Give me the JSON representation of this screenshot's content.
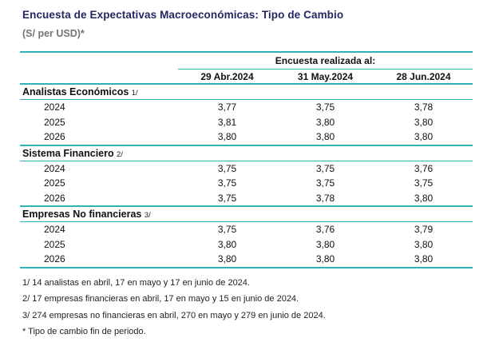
{
  "page": {
    "title": "Encuesta de Expectativas Macroeconómicas: Tipo de Cambio",
    "subtitle": "(S/ per USD)*"
  },
  "colors": {
    "accent_teal": "#2DB4BA",
    "title_navy": "#232862",
    "subtitle_gray": "#717579"
  },
  "chart_data": {
    "type": "table",
    "title": "Encuesta de Expectativas Macroeconómicas: Tipo de Cambio",
    "subtitle": "(S/ per USD)*",
    "columns": [
      "29 Abr.2024",
      "31 May.2024",
      "28 Jun.2024"
    ],
    "sections": [
      {
        "name": "Analistas Económicos 1/",
        "rows": [
          {
            "year": "2024",
            "values": [
              3.77,
              3.75,
              3.78
            ]
          },
          {
            "year": "2025",
            "values": [
              3.81,
              3.8,
              3.8
            ]
          },
          {
            "year": "2026",
            "values": [
              3.8,
              3.8,
              3.8
            ]
          }
        ]
      },
      {
        "name": "Sistema Financiero 2/",
        "rows": [
          {
            "year": "2024",
            "values": [
              3.75,
              3.75,
              3.76
            ]
          },
          {
            "year": "2025",
            "values": [
              3.75,
              3.75,
              3.75
            ]
          },
          {
            "year": "2026",
            "values": [
              3.75,
              3.78,
              3.8
            ]
          }
        ]
      },
      {
        "name": "Empresas No financieras 3/",
        "rows": [
          {
            "year": "2024",
            "values": [
              3.75,
              3.76,
              3.79
            ]
          },
          {
            "year": "2025",
            "values": [
              3.8,
              3.8,
              3.8
            ]
          },
          {
            "year": "2026",
            "values": [
              3.8,
              3.8,
              3.8
            ]
          }
        ]
      }
    ]
  },
  "table": {
    "header_group": "Encuesta realizada al:",
    "columns": [
      "29 Abr.2024",
      "31 May.2024",
      "28 Jun.2024"
    ],
    "sections": [
      {
        "label": "Analistas Económicos",
        "ref": "1/",
        "rows": [
          {
            "year": "2024",
            "values": [
              "3,77",
              "3,75",
              "3,78"
            ]
          },
          {
            "year": "2025",
            "values": [
              "3,81",
              "3,80",
              "3,80"
            ]
          },
          {
            "year": "2026",
            "values": [
              "3,80",
              "3,80",
              "3,80"
            ]
          }
        ]
      },
      {
        "label": "Sistema Financiero",
        "ref": "2/",
        "rows": [
          {
            "year": "2024",
            "values": [
              "3,75",
              "3,75",
              "3,76"
            ]
          },
          {
            "year": "2025",
            "values": [
              "3,75",
              "3,75",
              "3,75"
            ]
          },
          {
            "year": "2026",
            "values": [
              "3,75",
              "3,78",
              "3,80"
            ]
          }
        ]
      },
      {
        "label": "Empresas No financieras",
        "ref": "3/",
        "rows": [
          {
            "year": "2024",
            "values": [
              "3,75",
              "3,76",
              "3,79"
            ]
          },
          {
            "year": "2025",
            "values": [
              "3,80",
              "3,80",
              "3,80"
            ]
          },
          {
            "year": "2026",
            "values": [
              "3,80",
              "3,80",
              "3,80"
            ]
          }
        ]
      }
    ]
  },
  "footnotes": [
    "1/ 14 analistas en abril, 17 en mayo y 17 en junio de 2024.",
    "2/ 17 empresas financieras en abril, 17 en mayo y 15 en junio de 2024.",
    "3/ 274 empresas no financieras en abril, 270 en mayo y 279 en junio de 2024.",
    "* Tipo de cambio fin de periodo."
  ]
}
